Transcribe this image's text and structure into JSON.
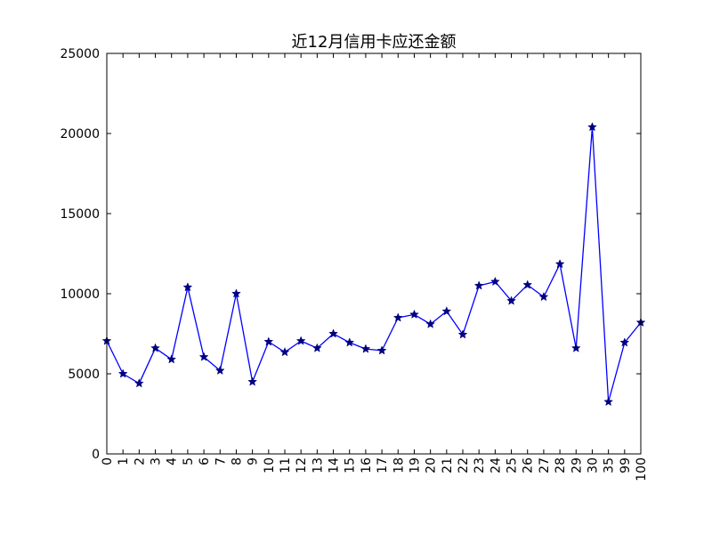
{
  "chart_data": {
    "type": "line",
    "title": "近12月信用卡应还金额",
    "xlabel": "",
    "ylabel": "",
    "categories": [
      "0",
      "1",
      "2",
      "3",
      "4",
      "5",
      "6",
      "7",
      "8",
      "9",
      "10",
      "11",
      "12",
      "13",
      "14",
      "15",
      "16",
      "17",
      "18",
      "19",
      "20",
      "21",
      "22",
      "23",
      "24",
      "25",
      "26",
      "27",
      "28",
      "29",
      "30",
      "35",
      "99",
      "100"
    ],
    "values": [
      7050,
      5000,
      4400,
      6600,
      5900,
      10400,
      6050,
      5200,
      10000,
      4500,
      7000,
      6350,
      7050,
      6600,
      7500,
      6950,
      6550,
      6450,
      8500,
      8700,
      8100,
      8900,
      7450,
      10500,
      10750,
      9550,
      10550,
      9800,
      11850,
      6600,
      20400,
      3250,
      6950,
      8200
    ],
    "ylim": [
      0,
      25000
    ],
    "yticks": [
      "0",
      "5000",
      "10000",
      "15000",
      "20000",
      "25000"
    ],
    "line_color": "#0000ff",
    "marker_color": "#000080",
    "marker": "star",
    "grid": false,
    "legend": "none"
  }
}
